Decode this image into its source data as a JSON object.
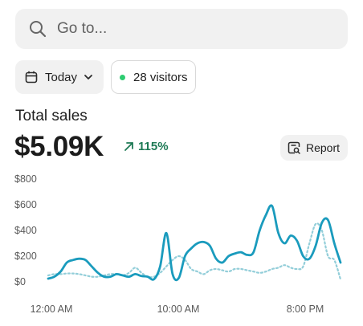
{
  "search": {
    "placeholder": "Go to..."
  },
  "filters": {
    "date_label": "Today",
    "visitors_label": "28 visitors"
  },
  "sales": {
    "title": "Total sales",
    "value": "$5.09K",
    "change": "115%"
  },
  "actions": {
    "report_label": "Report"
  },
  "colors": {
    "primary_series": "#1a9bbd",
    "comparison_series": "#93ced9",
    "change_up": "#1e7a55",
    "visitor_dot": "#2ecc71"
  },
  "chart_data": {
    "type": "line",
    "title": "",
    "xlabel": "",
    "ylabel": "",
    "y_ticks": [
      "$800",
      "$600",
      "$400",
      "$200",
      "$0"
    ],
    "x_ticks": [
      "12:00 AM",
      "10:00 AM",
      "8:00 PM"
    ],
    "ylim": [
      0,
      800
    ],
    "grid": false,
    "legend": "none",
    "series": [
      {
        "style": "solid",
        "values": [
          25,
          40,
          80,
          150,
          170,
          180,
          170,
          120,
          70,
          40,
          40,
          60,
          50,
          40,
          60,
          45,
          40,
          20,
          120,
          380,
          60,
          30,
          200,
          260,
          300,
          310,
          280,
          180,
          150,
          200,
          220,
          230,
          210,
          230,
          400,
          520,
          590,
          380,
          300,
          360,
          320,
          200,
          180,
          280,
          460,
          480,
          300,
          150
        ]
      },
      {
        "style": "dotted",
        "values": [
          50,
          60,
          60,
          65,
          65,
          60,
          50,
          40,
          40,
          50,
          60,
          60,
          50,
          70,
          110,
          70,
          40,
          40,
          70,
          120,
          170,
          200,
          170,
          100,
          80,
          60,
          90,
          100,
          90,
          80,
          100,
          100,
          90,
          80,
          70,
          80,
          100,
          110,
          130,
          110,
          100,
          120,
          300,
          450,
          400,
          200,
          170,
          20
        ]
      }
    ]
  }
}
